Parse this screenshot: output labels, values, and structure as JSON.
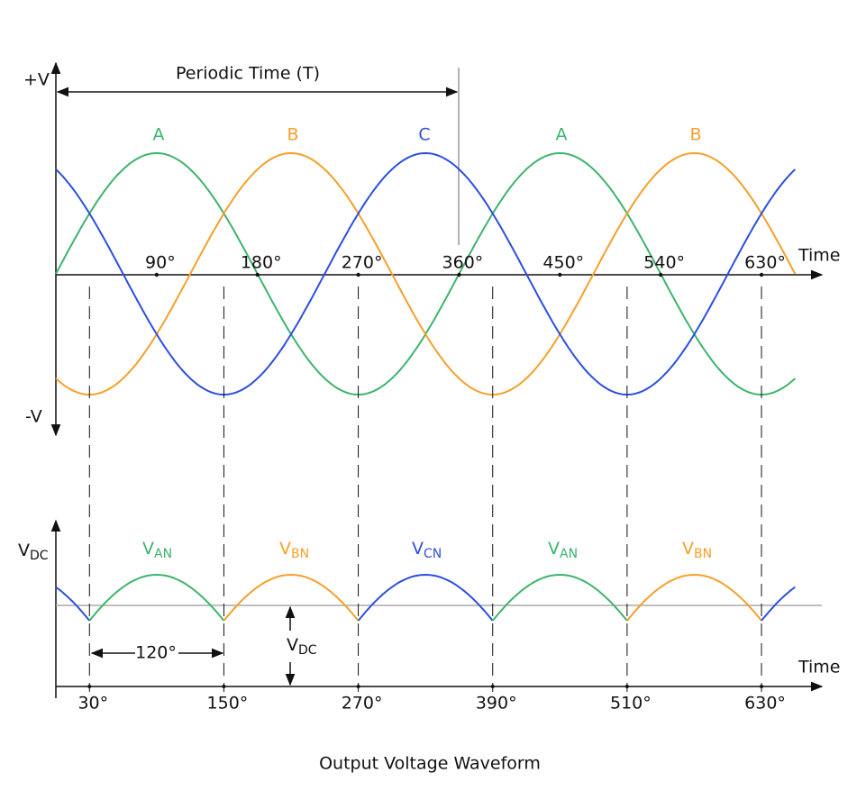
{
  "axis_labels": {
    "plus_v": "+V",
    "minus_v": "-V",
    "time_top": "Time",
    "time_bottom": "Time"
  },
  "period_label": "Periodic Time (T)",
  "phase_labels": [
    "A",
    "B",
    "C",
    "A",
    "B"
  ],
  "top_angles": [
    "90°",
    "180°",
    "270°",
    "360°",
    "450°",
    "540°",
    "630°"
  ],
  "bottom_angles": [
    "30°",
    "150°",
    "270°",
    "390°",
    "510°",
    "630°"
  ],
  "vdc_axis": {
    "main": "V",
    "sub": "DC"
  },
  "output_labels": [
    {
      "main": "V",
      "sub": "AN"
    },
    {
      "main": "V",
      "sub": "BN"
    },
    {
      "main": "V",
      "sub": "CN"
    },
    {
      "main": "V",
      "sub": "AN"
    },
    {
      "main": "V",
      "sub": "BN"
    }
  ],
  "vdc_marker": {
    "main": "V",
    "sub": "DC"
  },
  "spacing_label": "120°",
  "caption": "Output Voltage Waveform"
}
